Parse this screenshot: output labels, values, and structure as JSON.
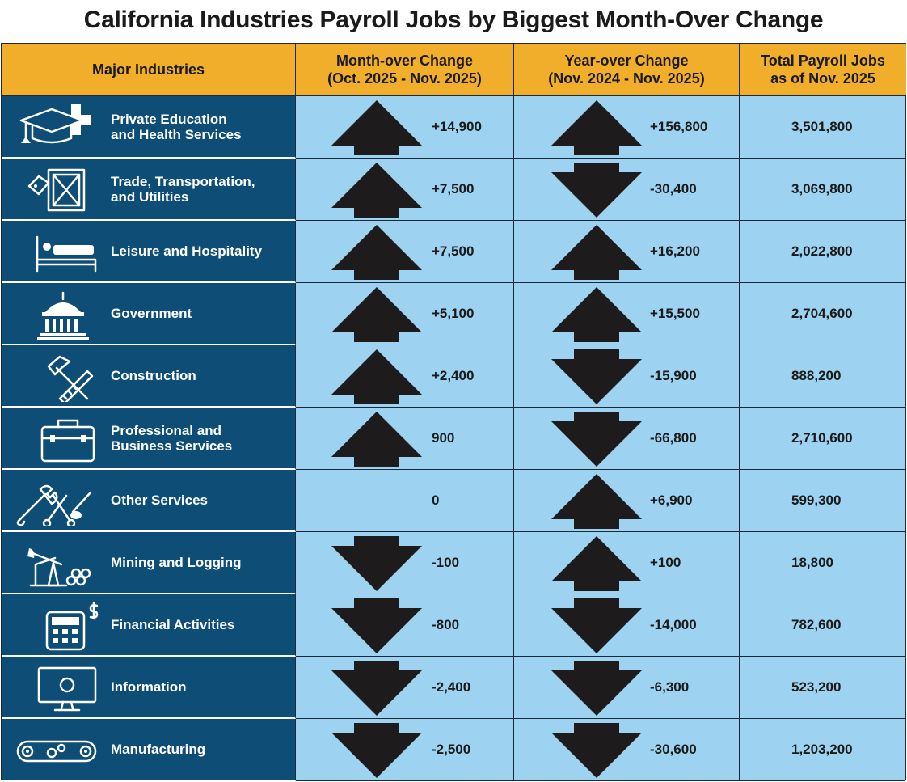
{
  "title": "California Industries Payroll Jobs by Biggest Month-Over Change",
  "headers": {
    "industry": "Major Industries",
    "mom": "Month-over Change\n(Oct. 2025 - Nov. 2025)",
    "yoy": "Year-over Change\n(Nov. 2024 - Nov. 2025)",
    "total": "Total Payroll Jobs\nas of Nov. 2025"
  },
  "chart_data": {
    "type": "table",
    "title": "California Industries Payroll Jobs by Biggest Month-Over Change",
    "columns": [
      "Major Industries",
      "Month-over Change (Oct. 2025 - Nov. 2025)",
      "Year-over Change (Nov. 2024 - Nov. 2025)",
      "Total Payroll Jobs as of Nov. 2025"
    ],
    "rows": [
      {
        "industry": "Private Education\nand Health Services",
        "icon": "graduation-health-icon",
        "mom": "+14,900",
        "mom_dir": "up",
        "yoy": "+156,800",
        "yoy_dir": "up",
        "total": "3,501,800"
      },
      {
        "industry": "Trade, Transportation,\nand Utilities",
        "icon": "crate-tag-icon",
        "mom": "+7,500",
        "mom_dir": "up",
        "yoy": "-30,400",
        "yoy_dir": "down",
        "total": "3,069,800"
      },
      {
        "industry": "Leisure and Hospitality",
        "icon": "bed-icon",
        "mom": "+7,500",
        "mom_dir": "up",
        "yoy": "+16,200",
        "yoy_dir": "up",
        "total": "2,022,800"
      },
      {
        "industry": "Government",
        "icon": "capitol-icon",
        "mom": "+5,100",
        "mom_dir": "up",
        "yoy": "+15,500",
        "yoy_dir": "up",
        "total": "2,704,600"
      },
      {
        "industry": "Construction",
        "icon": "hammer-saw-icon",
        "mom": "+2,400",
        "mom_dir": "up",
        "yoy": "-15,900",
        "yoy_dir": "down",
        "total": "888,200"
      },
      {
        "industry": "Professional and\nBusiness Services",
        "icon": "toolbox-icon",
        "mom": "900",
        "mom_dir": "up",
        "yoy": "-66,800",
        "yoy_dir": "down",
        "total": "2,710,600"
      },
      {
        "industry": "Other Services",
        "icon": "wrench-scissors-icon",
        "mom": "0",
        "mom_dir": "none",
        "yoy": "+6,900",
        "yoy_dir": "up",
        "total": "599,300"
      },
      {
        "industry": "Mining and Logging",
        "icon": "oil-pump-logs-icon",
        "mom": "-100",
        "mom_dir": "down",
        "yoy": "+100",
        "yoy_dir": "up",
        "total": "18,800"
      },
      {
        "industry": "Financial Activities",
        "icon": "calculator-dollar-icon",
        "mom": "-800",
        "mom_dir": "down",
        "yoy": "-14,000",
        "yoy_dir": "down",
        "total": "782,600"
      },
      {
        "industry": "Information",
        "icon": "monitor-icon",
        "mom": "-2,400",
        "mom_dir": "down",
        "yoy": "-6,300",
        "yoy_dir": "down",
        "total": "523,200"
      },
      {
        "industry": "Manufacturing",
        "icon": "conveyor-gears-icon",
        "mom": "-2,500",
        "mom_dir": "down",
        "yoy": "-30,600",
        "yoy_dir": "down",
        "total": "1,203,200"
      }
    ]
  },
  "colors": {
    "header": "#f0ae2a",
    "industry_bg": "#0e4d76",
    "cell_bg": "#9dd3f0",
    "arrow": "#1e1b1c"
  }
}
